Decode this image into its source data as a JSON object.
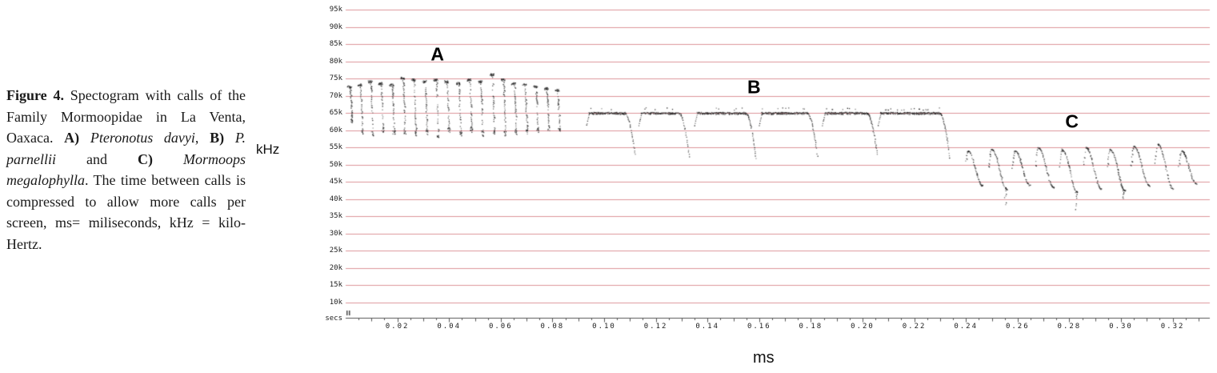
{
  "caption": {
    "segments": [
      {
        "t": "Figure 4.",
        "b": true
      },
      {
        "t": "  Spectogram with calls of the Family Mormoopidae in La Venta, Oaxaca. "
      },
      {
        "t": "A)",
        "b": true
      },
      {
        "t": " "
      },
      {
        "t": "Pteronotus davyi",
        "i": true
      },
      {
        "t": ", "
      },
      {
        "t": "B)",
        "b": true
      },
      {
        "t": " "
      },
      {
        "t": "P. parnellii",
        "i": true
      },
      {
        "t": " and "
      },
      {
        "t": "C)",
        "b": true
      },
      {
        "t": " "
      },
      {
        "t": "Mormoops megalophylla",
        "i": true
      },
      {
        "t": ". The time between calls is compressed to allow more calls per screen, ms= miliseconds, kHz = kilo-Hertz."
      }
    ]
  },
  "chart_data": {
    "type": "scatter",
    "subtype": "spectrogram",
    "title": "",
    "xlabel": "ms",
    "ylabel": "kHz",
    "origin_label": "secs",
    "xlim": [
      0,
      0.334
    ],
    "ylim": [
      5000,
      96500
    ],
    "grid": true,
    "grid_color": "#dd949a",
    "dot_color": "#1e1e1e",
    "axis_color": "#555555",
    "x_tick_labels": [
      "0.02",
      "0.04",
      "0.06",
      "0.08",
      "0.10",
      "0.12",
      "0.14",
      "0.16",
      "0.18",
      "0.20",
      "0.22",
      "0.24",
      "0.26",
      "0.28",
      "0.30",
      "0.32"
    ],
    "y_tick_labels": [
      "95k",
      "90k",
      "85k",
      "80k",
      "75k",
      "70k",
      "65k",
      "60k",
      "55k",
      "50k",
      "45k",
      "40k",
      "35k",
      "30k",
      "25k",
      "20k",
      "15k",
      "10k"
    ],
    "annotations": [
      {
        "text": "A",
        "t": 0.0355,
        "f": 82000
      },
      {
        "text": "B",
        "t": 0.158,
        "f": 72500
      },
      {
        "text": "C",
        "t": 0.281,
        "f": 62500
      }
    ],
    "series": [
      {
        "label": "A",
        "species": "Pteronotus davyi",
        "shape": "cf_fm_steep",
        "calls": [
          {
            "t": 0.0005,
            "f_top": 73000,
            "f_bot": 62000
          },
          {
            "t": 0.0045,
            "f_top": 73500,
            "f_bot": 59000
          },
          {
            "t": 0.0085,
            "f_top": 74500,
            "f_bot": 58500
          },
          {
            "t": 0.0125,
            "f_top": 74000,
            "f_bot": 59500
          },
          {
            "t": 0.0168,
            "f_top": 73500,
            "f_bot": 58500
          },
          {
            "t": 0.021,
            "f_top": 75500,
            "f_bot": 59000
          },
          {
            "t": 0.0252,
            "f_top": 75000,
            "f_bot": 58500
          },
          {
            "t": 0.0295,
            "f_top": 74500,
            "f_bot": 59000
          },
          {
            "t": 0.0338,
            "f_top": 75000,
            "f_bot": 58000
          },
          {
            "t": 0.038,
            "f_top": 74500,
            "f_bot": 59500
          },
          {
            "t": 0.0425,
            "f_top": 74000,
            "f_bot": 58500
          },
          {
            "t": 0.0468,
            "f_top": 75000,
            "f_bot": 59500
          },
          {
            "t": 0.051,
            "f_top": 74500,
            "f_bot": 58500
          },
          {
            "t": 0.0555,
            "f_top": 76500,
            "f_bot": 59000
          },
          {
            "t": 0.0598,
            "f_top": 75000,
            "f_bot": 58500
          },
          {
            "t": 0.064,
            "f_top": 74000,
            "f_bot": 59000
          },
          {
            "t": 0.0682,
            "f_top": 73500,
            "f_bot": 59000
          },
          {
            "t": 0.0724,
            "f_top": 73000,
            "f_bot": 59500
          },
          {
            "t": 0.0766,
            "f_top": 72500,
            "f_bot": 60000
          },
          {
            "t": 0.0808,
            "f_top": 72000,
            "f_bot": 60000
          }
        ]
      },
      {
        "label": "B",
        "species": "P. parnellii",
        "shape": "cf_fm_long",
        "cf": 65000,
        "calls": [
          {
            "t": 0.094,
            "cf_dur": 0.014,
            "tail_dur": 0.0038,
            "f_end": 53000
          },
          {
            "t": 0.1142,
            "cf_dur": 0.0148,
            "tail_dur": 0.0038,
            "f_end": 52500
          },
          {
            "t": 0.1358,
            "cf_dur": 0.019,
            "tail_dur": 0.0038,
            "f_end": 52000
          },
          {
            "t": 0.1608,
            "cf_dur": 0.0178,
            "tail_dur": 0.0038,
            "f_end": 52500
          },
          {
            "t": 0.1852,
            "cf_dur": 0.0165,
            "tail_dur": 0.0038,
            "f_end": 53000
          },
          {
            "t": 0.2068,
            "cf_dur": 0.023,
            "tail_dur": 0.0038,
            "f_end": 52000
          }
        ]
      },
      {
        "label": "C",
        "species": "Mormoops megalophylla",
        "shape": "fm_curved",
        "calls": [
          {
            "t": 0.2395,
            "f_start": 49000,
            "f_peak": 54000,
            "f_end": 44000,
            "dur": 0.0068
          },
          {
            "t": 0.2487,
            "f_start": 49500,
            "f_peak": 54500,
            "f_end": 43000,
            "dur": 0.007,
            "f_deep": 38000
          },
          {
            "t": 0.2578,
            "f_start": 49000,
            "f_peak": 54000,
            "f_end": 44000,
            "dur": 0.0068
          },
          {
            "t": 0.2668,
            "f_start": 50000,
            "f_peak": 55000,
            "f_end": 43500,
            "dur": 0.007
          },
          {
            "t": 0.276,
            "f_start": 49500,
            "f_peak": 54500,
            "f_end": 42000,
            "dur": 0.007,
            "f_deep": 36500
          },
          {
            "t": 0.2853,
            "f_start": 50000,
            "f_peak": 55000,
            "f_end": 43000,
            "dur": 0.007
          },
          {
            "t": 0.2946,
            "f_start": 49500,
            "f_peak": 54500,
            "f_end": 42500,
            "dur": 0.0068,
            "f_deep": 40000
          },
          {
            "t": 0.3038,
            "f_start": 50000,
            "f_peak": 55500,
            "f_end": 44000,
            "dur": 0.007
          },
          {
            "t": 0.313,
            "f_start": 50500,
            "f_peak": 56000,
            "f_end": 43000,
            "dur": 0.007
          },
          {
            "t": 0.3222,
            "f_start": 49500,
            "f_peak": 54000,
            "f_end": 44500,
            "dur": 0.0068
          }
        ]
      }
    ]
  }
}
